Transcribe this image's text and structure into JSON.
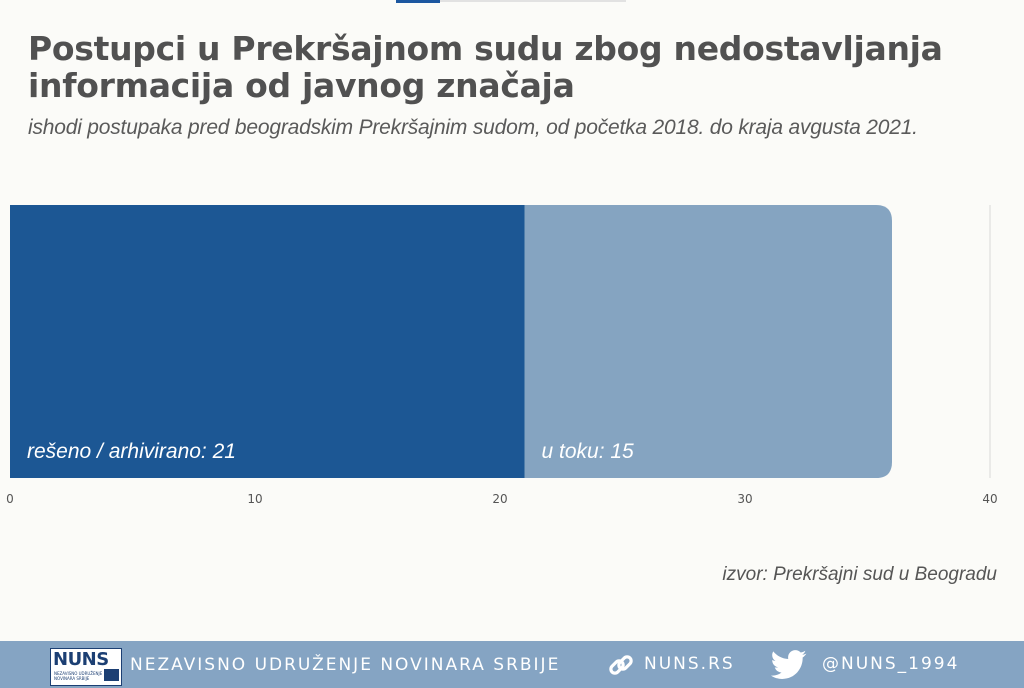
{
  "title": "Postupci u Prekršajnom sudu zbog nedostavljanja informacija od javnog značaja",
  "subtitle": "ishodi postupaka pred beogradskim Prekršajnim sudom, od početka 2018. do kraja avgusta 2021.",
  "source": "izvor: Prekršajni sud u Beogradu",
  "chart_data": {
    "type": "bar",
    "orientation": "horizontal",
    "stacked": true,
    "title": "Postupci u Prekršajnom sudu zbog nedostavljanja informacija od javnog značaja",
    "subtitle": "ishodi postupaka pred beogradskim Prekršajnim sudom, od početka 2018. do kraja avgusta 2021.",
    "xlabel": "",
    "ylabel": "",
    "xlim": [
      0,
      40
    ],
    "ticks": [
      "0",
      "10",
      "20",
      "30",
      "40"
    ],
    "grid": false,
    "series": [
      {
        "label": "rešeno / arhivirano: 21",
        "value": 21,
        "color": "#1c5794"
      },
      {
        "label": "u toku: 15",
        "value": 15,
        "color": "#85a4c1"
      }
    ]
  },
  "footer": {
    "logo_text": "NUNS",
    "logo_subtext": "NEZAVISNO UDRUŽENJE NOVINARA SRBIJE",
    "org_name": "NEZAVISNO UDRUŽENJE NOVINARA SRBIJE",
    "link_icon": "link-icon",
    "website": "NUNS.RS",
    "twitter_icon": "twitter-bird-icon",
    "twitter_handle": "@NUNS_1994"
  },
  "colors": {
    "background": "#fbfbf8",
    "footer": "#85a4c3",
    "primary_bar": "#1c5794",
    "secondary_bar": "#85a4c1",
    "title": "#515151"
  }
}
